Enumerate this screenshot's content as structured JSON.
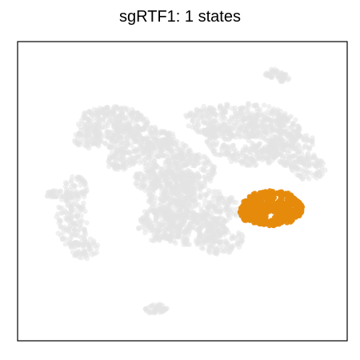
{
  "chart_data": {
    "type": "scatter",
    "title": "sgRTF1: 1 states",
    "xlabel": "",
    "ylabel": "",
    "axis_ticks": false,
    "grid": false,
    "legend": "none",
    "series": [
      {
        "name": "",
        "role": "background",
        "color": "#e3e3e3"
      },
      {
        "name": "",
        "role": "highlighted-state",
        "color": "#e68a0c"
      }
    ]
  }
}
